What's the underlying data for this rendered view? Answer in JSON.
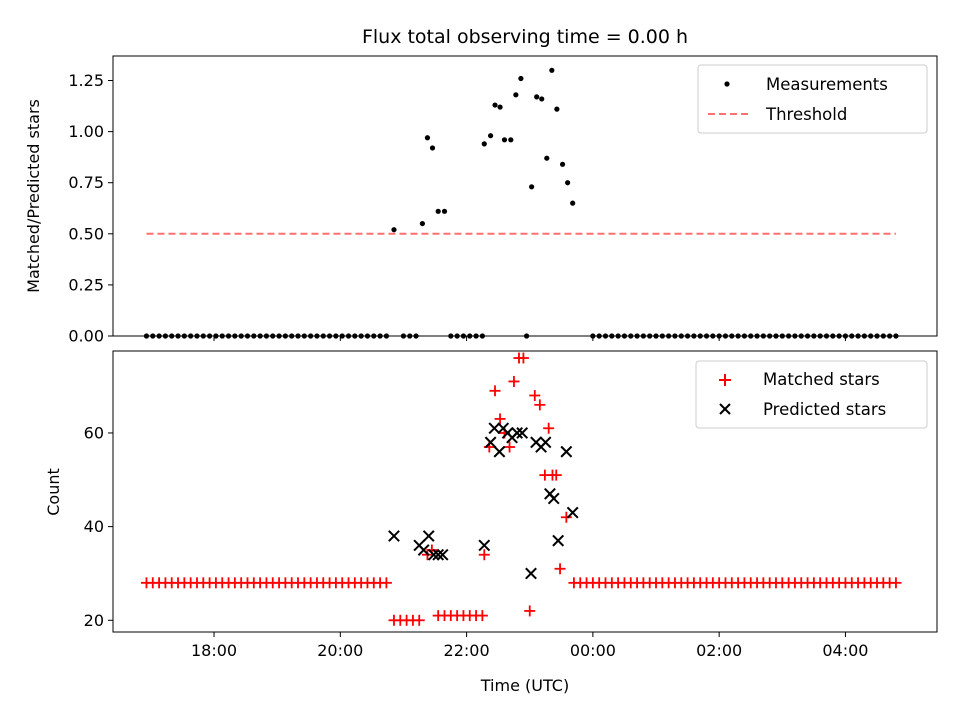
{
  "chart_data": {
    "title": "Flux total observing time = 0.00 h",
    "xlabel": "Time (UTC)",
    "x_units": "hours since 00:00 of the first day",
    "xlim": [
      16.4,
      29.45
    ],
    "x_ticks": [
      {
        "value": 18,
        "label": "18:00"
      },
      {
        "value": 20,
        "label": "20:00"
      },
      {
        "value": 22,
        "label": "22:00"
      },
      {
        "value": 24,
        "label": "00:00"
      },
      {
        "value": 26,
        "label": "02:00"
      },
      {
        "value": 28,
        "label": "04:00"
      }
    ],
    "panels": [
      {
        "type": "scatter",
        "ylabel": "Matched/Predicted stars",
        "ylim": [
          0,
          1.37
        ],
        "y_ticks": [
          {
            "value": 0,
            "label": "0.00"
          },
          {
            "value": 0.25,
            "label": "0.25"
          },
          {
            "value": 0.5,
            "label": "0.50"
          },
          {
            "value": 0.75,
            "label": "0.75"
          },
          {
            "value": 1.0,
            "label": "1.00"
          },
          {
            "value": 1.25,
            "label": "1.25"
          }
        ],
        "legend": [
          "Measurements",
          "Threshold"
        ],
        "series": [
          {
            "name": "Measurements",
            "color": "#000000",
            "zero_run_1": {
              "start": 16.93,
              "end": 20.75,
              "step": 0.1,
              "value": 0
            },
            "zero_run_2": {
              "start": 24.0,
              "end": 28.8,
              "step": 0.1,
              "value": 0
            },
            "points": [
              [
                20.85,
                0.52
              ],
              [
                21.0,
                0
              ],
              [
                21.1,
                0
              ],
              [
                21.2,
                0
              ],
              [
                21.3,
                0.55
              ],
              [
                21.38,
                0.97
              ],
              [
                21.46,
                0.92
              ],
              [
                21.55,
                0.61
              ],
              [
                21.65,
                0.61
              ],
              [
                21.75,
                0
              ],
              [
                21.85,
                0
              ],
              [
                21.95,
                0
              ],
              [
                22.05,
                0
              ],
              [
                22.15,
                0
              ],
              [
                22.25,
                0
              ],
              [
                22.28,
                0.94
              ],
              [
                22.38,
                0.98
              ],
              [
                22.45,
                1.13
              ],
              [
                22.53,
                1.12
              ],
              [
                22.6,
                0.96
              ],
              [
                22.7,
                0.96
              ],
              [
                22.78,
                1.18
              ],
              [
                22.86,
                1.26
              ],
              [
                22.95,
                0
              ],
              [
                23.03,
                0.73
              ],
              [
                23.11,
                1.17
              ],
              [
                23.19,
                1.16
              ],
              [
                23.27,
                0.87
              ],
              [
                23.35,
                1.3
              ],
              [
                23.43,
                1.11
              ],
              [
                23.52,
                0.84
              ],
              [
                23.6,
                0.75
              ],
              [
                23.68,
                0.65
              ]
            ]
          },
          {
            "name": "Threshold",
            "color": "#ff7070",
            "style": "dashed",
            "x": [
              16.93,
              28.8
            ],
            "y": [
              0.5,
              0.5
            ]
          }
        ]
      },
      {
        "type": "scatter",
        "ylabel": "Count",
        "ylim": [
          17.5,
          77.5
        ],
        "y_ticks": [
          {
            "value": 20,
            "label": "20"
          },
          {
            "value": 40,
            "label": "40"
          },
          {
            "value": 60,
            "label": "60"
          }
        ],
        "legend": [
          "Matched stars",
          "Predicted stars"
        ],
        "series": [
          {
            "name": "Matched stars",
            "color": "#ff0000",
            "marker": "+",
            "run_1": {
              "start": 16.93,
              "end": 20.75,
              "step": 0.1,
              "value": 28
            },
            "run_2": {
              "start": 23.7,
              "end": 28.8,
              "step": 0.1,
              "value": 28
            },
            "points": [
              [
                20.85,
                20
              ],
              [
                20.95,
                20
              ],
              [
                21.05,
                20
              ],
              [
                21.15,
                20
              ],
              [
                21.25,
                20
              ],
              [
                21.38,
                34
              ],
              [
                21.45,
                35
              ],
              [
                21.55,
                21
              ],
              [
                21.65,
                21
              ],
              [
                21.75,
                21
              ],
              [
                21.85,
                21
              ],
              [
                21.95,
                21
              ],
              [
                22.05,
                21
              ],
              [
                22.15,
                21
              ],
              [
                22.25,
                21
              ],
              [
                22.28,
                34
              ],
              [
                22.36,
                57
              ],
              [
                22.45,
                69
              ],
              [
                22.53,
                63
              ],
              [
                22.6,
                60
              ],
              [
                22.68,
                57
              ],
              [
                22.75,
                71
              ],
              [
                22.83,
                76
              ],
              [
                22.9,
                76
              ],
              [
                23.0,
                22
              ],
              [
                23.08,
                68
              ],
              [
                23.16,
                66
              ],
              [
                23.24,
                51
              ],
              [
                23.3,
                61
              ],
              [
                23.36,
                51
              ],
              [
                23.42,
                51
              ],
              [
                23.48,
                31
              ],
              [
                23.58,
                42
              ]
            ]
          },
          {
            "name": "Predicted stars",
            "color": "#000000",
            "marker": "x",
            "points": [
              [
                20.85,
                38
              ],
              [
                21.25,
                36
              ],
              [
                21.32,
                35
              ],
              [
                21.4,
                38
              ],
              [
                21.48,
                34
              ],
              [
                21.55,
                34
              ],
              [
                21.62,
                34
              ],
              [
                22.28,
                36
              ],
              [
                22.38,
                58
              ],
              [
                22.44,
                61
              ],
              [
                22.52,
                56
              ],
              [
                22.58,
                61
              ],
              [
                22.65,
                60
              ],
              [
                22.72,
                59
              ],
              [
                22.8,
                60
              ],
              [
                22.88,
                60
              ],
              [
                23.02,
                30
              ],
              [
                23.1,
                58
              ],
              [
                23.18,
                57
              ],
              [
                23.25,
                58
              ],
              [
                23.32,
                47
              ],
              [
                23.38,
                46
              ],
              [
                23.45,
                37
              ],
              [
                23.58,
                56
              ],
              [
                23.68,
                43
              ]
            ]
          }
        ]
      }
    ]
  }
}
